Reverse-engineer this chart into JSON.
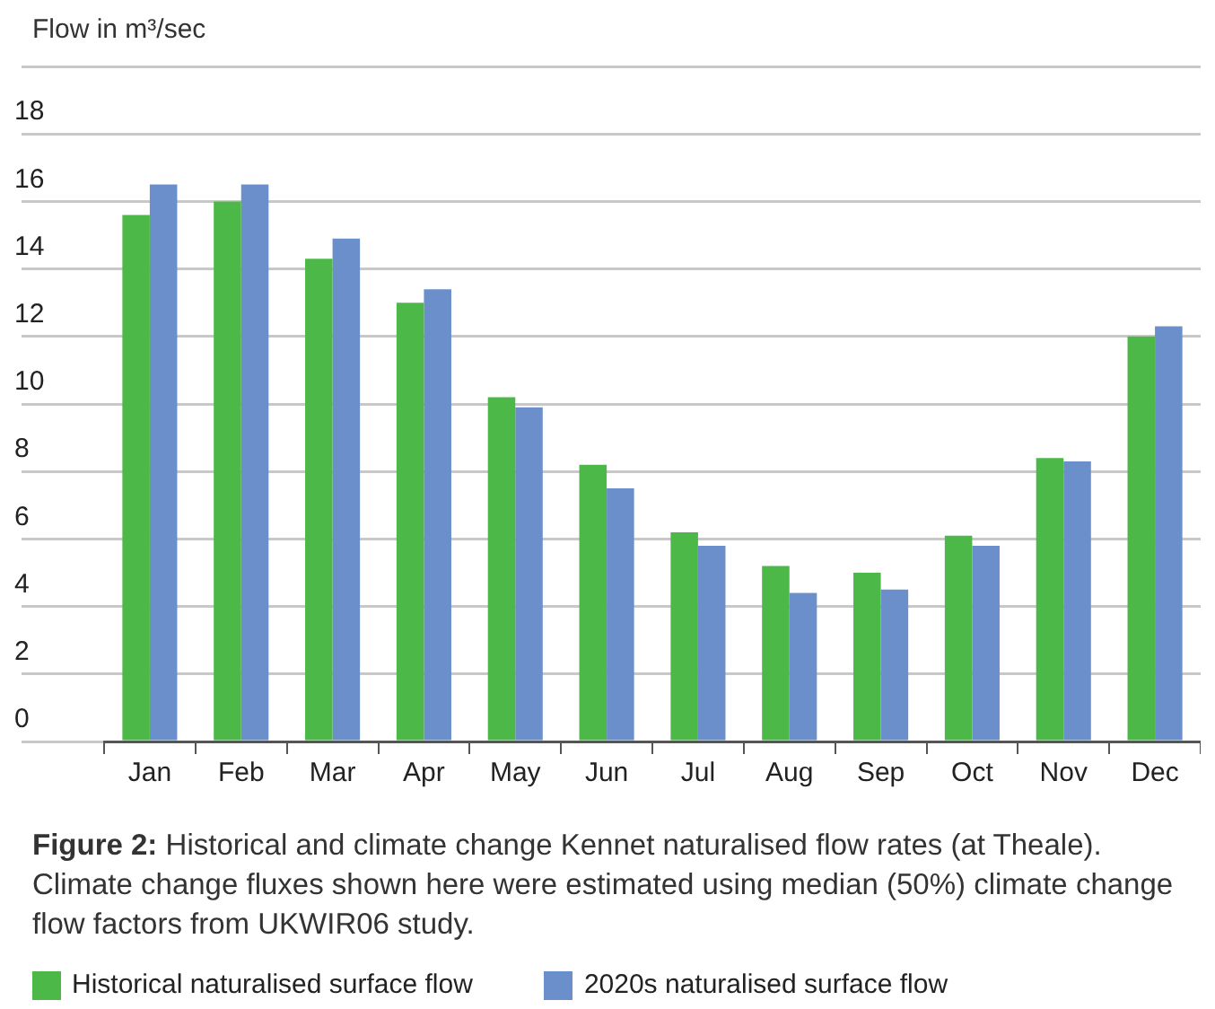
{
  "chart_data": {
    "type": "bar",
    "ylabel": "Flow in m³/sec",
    "categories": [
      "Jan",
      "Feb",
      "Mar",
      "Apr",
      "May",
      "Jun",
      "Jul",
      "Aug",
      "Sep",
      "Oct",
      "Nov",
      "Dec"
    ],
    "series": [
      {
        "name": "Historical naturalised surface flow",
        "color": "#4cb848",
        "values": [
          15.6,
          16.0,
          14.3,
          13.0,
          10.2,
          8.2,
          6.2,
          5.2,
          5.0,
          6.1,
          8.4,
          12.0
        ]
      },
      {
        "name": "2020s naturalised surface flow",
        "color": "#6a8fca",
        "values": [
          16.5,
          16.5,
          14.9,
          13.4,
          9.9,
          7.5,
          5.8,
          4.4,
          4.5,
          5.8,
          8.3,
          12.3
        ]
      }
    ],
    "ylim": [
      0,
      20
    ],
    "yticks": [
      0,
      2,
      4,
      6,
      8,
      10,
      12,
      14,
      16,
      18,
      {
        "value": 20,
        "label": null
      }
    ],
    "grid": "y",
    "legend": "bottom",
    "annotations": [
      "Figure 2: Historical and climate change Kennet naturalised flow rates (at Theale). Climate change fluxes shown here were estimated using median (50%) climate change flow factors from UKWIR06 study."
    ]
  }
}
